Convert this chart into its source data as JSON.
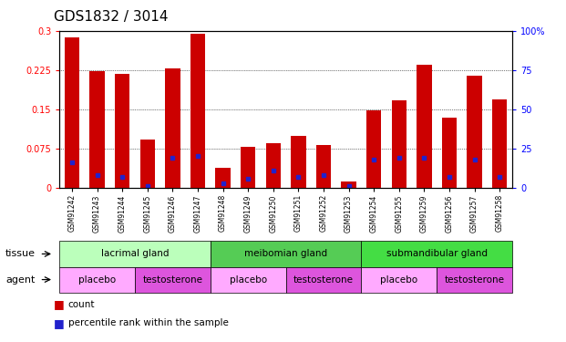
{
  "title": "GDS1832 / 3014",
  "samples": [
    "GSM91242",
    "GSM91243",
    "GSM91244",
    "GSM91245",
    "GSM91246",
    "GSM91247",
    "GSM91248",
    "GSM91249",
    "GSM91250",
    "GSM91251",
    "GSM91252",
    "GSM91253",
    "GSM91254",
    "GSM91255",
    "GSM91259",
    "GSM91256",
    "GSM91257",
    "GSM91258"
  ],
  "count_values": [
    0.287,
    0.223,
    0.218,
    0.093,
    0.228,
    0.295,
    0.038,
    0.078,
    0.085,
    0.1,
    0.082,
    0.013,
    0.148,
    0.168,
    0.235,
    0.135,
    0.215,
    0.17
  ],
  "percentile_values": [
    0.05,
    0.025,
    0.022,
    0.004,
    0.058,
    0.062,
    0.01,
    0.018,
    0.033,
    0.022,
    0.025,
    0.004,
    0.055,
    0.058,
    0.058,
    0.022,
    0.055,
    0.022
  ],
  "bar_color": "#cc0000",
  "dot_color": "#2222cc",
  "ylim_left": [
    0,
    0.3
  ],
  "ylim_right": [
    0,
    100
  ],
  "yticks_left": [
    0,
    0.075,
    0.15,
    0.225,
    0.3
  ],
  "ytick_labels_left": [
    "0",
    "0.075",
    "0.15",
    "0.225",
    "0.3"
  ],
  "yticks_right": [
    0,
    25,
    50,
    75,
    100
  ],
  "ytick_labels_right": [
    "0",
    "25",
    "50",
    "75",
    "100%"
  ],
  "tissue_groups": [
    {
      "label": "lacrimal gland",
      "start": 0,
      "end": 6,
      "color": "#bbffbb"
    },
    {
      "label": "meibomian gland",
      "start": 6,
      "end": 12,
      "color": "#55cc55"
    },
    {
      "label": "submandibular gland",
      "start": 12,
      "end": 18,
      "color": "#44dd44"
    }
  ],
  "agent_groups": [
    {
      "label": "placebo",
      "start": 0,
      "end": 3,
      "color": "#ffaaff"
    },
    {
      "label": "testosterone",
      "start": 3,
      "end": 6,
      "color": "#dd55dd"
    },
    {
      "label": "placebo",
      "start": 6,
      "end": 9,
      "color": "#ffaaff"
    },
    {
      "label": "testosterone",
      "start": 9,
      "end": 12,
      "color": "#dd55dd"
    },
    {
      "label": "placebo",
      "start": 12,
      "end": 15,
      "color": "#ffaaff"
    },
    {
      "label": "testosterone",
      "start": 15,
      "end": 18,
      "color": "#dd55dd"
    }
  ],
  "legend_items": [
    {
      "label": "count",
      "color": "#cc0000"
    },
    {
      "label": "percentile rank within the sample",
      "color": "#2222cc"
    }
  ],
  "tissue_label": "tissue",
  "agent_label": "agent",
  "bar_width": 0.6,
  "title_fontsize": 11,
  "tick_fontsize": 7,
  "xtick_fontsize": 5.5,
  "row_fontsize": 7.5,
  "legend_fontsize": 7.5
}
